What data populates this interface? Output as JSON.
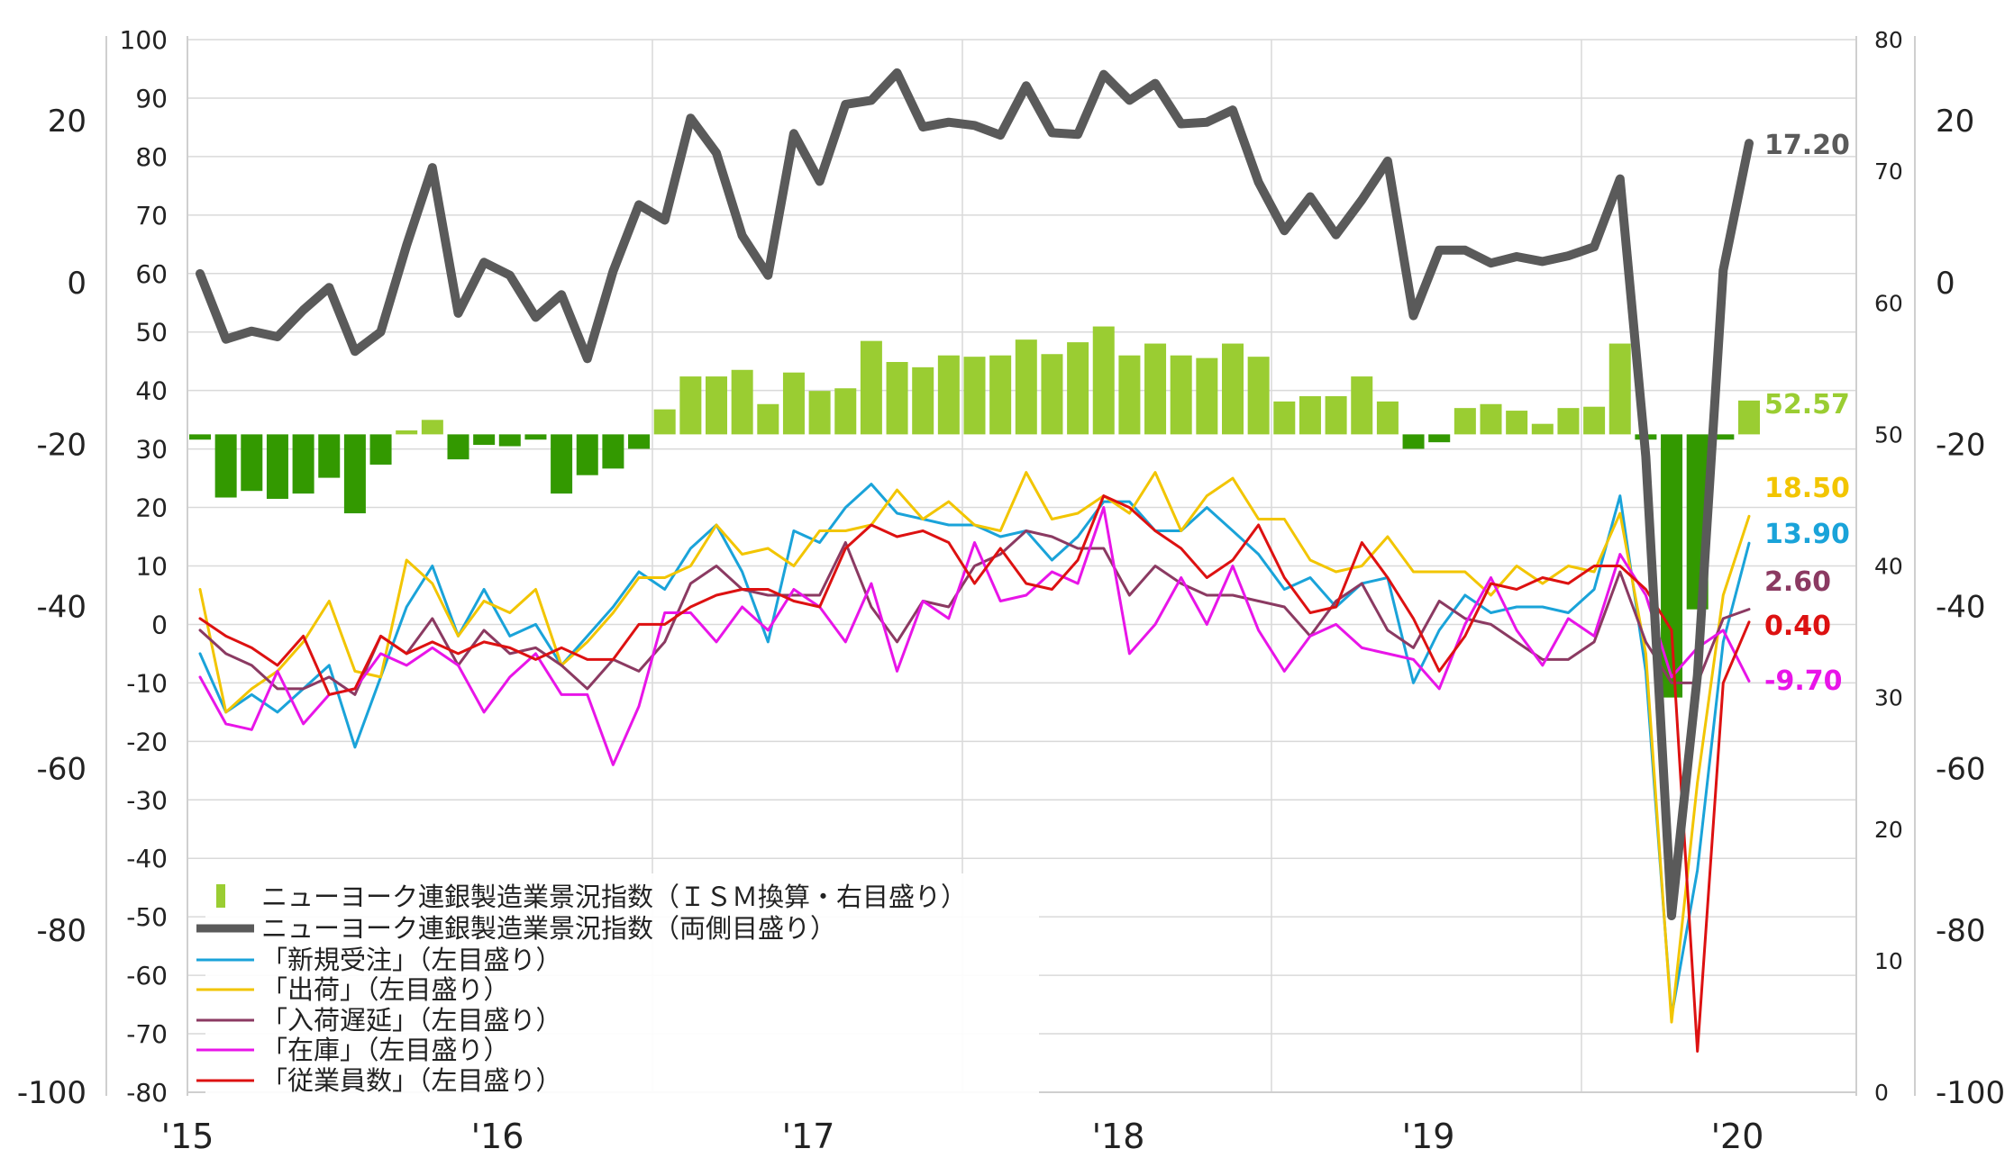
{
  "chart_data": {
    "type": "line",
    "x_labels": [
      "'15",
      "'16",
      "'17",
      "'18",
      "'19",
      "'20"
    ],
    "axes": {
      "outer_left": {
        "ticks": [
          20,
          0,
          -20,
          -40,
          -60,
          -80,
          -100
        ],
        "range": [
          -100,
          30
        ]
      },
      "inner_left": {
        "ticks": [
          100,
          90,
          80,
          70,
          60,
          50,
          40,
          30,
          20,
          10,
          0,
          -10,
          -20,
          -30,
          -40,
          -50,
          -60,
          -70,
          -80
        ],
        "range": [
          -80,
          100
        ]
      },
      "inner_right": {
        "ticks": [
          80,
          70,
          60,
          50,
          40,
          30,
          20,
          10,
          0
        ],
        "range": [
          0,
          80
        ]
      },
      "outer_right": {
        "ticks": [
          20,
          0,
          -20,
          -40,
          -60,
          -80,
          -100
        ],
        "range": [
          -100,
          30
        ]
      }
    },
    "grid": true,
    "legend_position": "lower-left",
    "legend": [
      "ニューヨーク連銀製造業景況指数（ＩＳＭ換算・右目盛り）",
      "ニューヨーク連銀製造業景況指数（両側目盛り）",
      "「新規受注」（左目盛り）",
      "「出荷」（左目盛り）",
      "「入荷遅延」（左目盛り）",
      "「在庫」（左目盛り）",
      "「従業員数」（左目盛り）"
    ],
    "bars": {
      "name": "ニューヨーク連銀製造業景況指数（ＩＳＭ換算・右目盛り）",
      "axis": "inner_right",
      "baseline": 50,
      "color_up": "#9acd32",
      "color_down": "#339900",
      "values": [
        49.6,
        45.2,
        45.7,
        45.1,
        45.5,
        46.7,
        44.0,
        47.7,
        50.3,
        51.1,
        48.1,
        49.2,
        49.1,
        49.6,
        45.5,
        46.9,
        47.4,
        48.9,
        51.9,
        54.4,
        54.4,
        54.9,
        52.3,
        54.7,
        53.3,
        53.5,
        57.1,
        55.5,
        55.1,
        56.0,
        55.9,
        56.0,
        57.2,
        56.1,
        57.0,
        58.2,
        56.0,
        56.9,
        56.0,
        55.8,
        56.9,
        55.9,
        52.5,
        52.9,
        52.9,
        54.4,
        52.5,
        48.9,
        49.4,
        52.0,
        52.3,
        51.8,
        50.8,
        52.0,
        52.1,
        56.9,
        49.6,
        30.0,
        36.7,
        49.6,
        52.57
      ]
    },
    "series": [
      {
        "name": "ニューヨーク連銀製造業景況指数（両側目盛り）",
        "axis": "outer_right",
        "color": "#5a5a5a",
        "width": 10,
        "label": "17.20",
        "values": [
          1.1,
          -7.0,
          -6.0,
          -6.7,
          -3.4,
          -0.6,
          -8.5,
          -6.1,
          4.6,
          14.2,
          -3.8,
          2.5,
          0.9,
          -4.3,
          -1.5,
          -9.4,
          1.4,
          9.6,
          7.7,
          20.3,
          16.0,
          5.8,
          0.9,
          18.4,
          12.5,
          22.0,
          22.5,
          25.9,
          19.2,
          19.8,
          19.4,
          18.2,
          24.3,
          18.5,
          18.3,
          25.7,
          22.5,
          24.6,
          19.6,
          19.8,
          21.3,
          12.4,
          6.4,
          10.6,
          5.9,
          10.2,
          15.0,
          -4.1,
          4.0,
          4.0,
          2.4,
          3.2,
          2.6,
          3.3,
          4.4,
          12.8,
          -21.5,
          -78.2,
          -48.5,
          1.5,
          17.2
        ]
      },
      {
        "name": "「新規受注」（左目盛り）",
        "axis": "inner_left",
        "color": "#1aa3d9",
        "width": 3,
        "label": "13.90",
        "values": [
          -5,
          -15,
          -12,
          -15,
          -11,
          -7,
          -21,
          -9,
          3,
          10,
          -2,
          6,
          -2,
          0,
          -7,
          -2,
          3,
          9,
          6,
          13,
          17,
          9,
          -3,
          16,
          14,
          20,
          24,
          19,
          18,
          17,
          17,
          15,
          16,
          11,
          15,
          21,
          21,
          16,
          16,
          20,
          16,
          12,
          6,
          8,
          3,
          7,
          8,
          -10,
          -1,
          5,
          2,
          3,
          3,
          2,
          6,
          22,
          -8,
          -67,
          -42,
          -3,
          13.9
        ]
      },
      {
        "name": "「出荷」（左目盛り）",
        "axis": "inner_left",
        "color": "#f2c500",
        "width": 3,
        "label": "18.50",
        "values": [
          6,
          -15,
          -11,
          -8,
          -3,
          4,
          -8,
          -9,
          11,
          7,
          -2,
          4,
          2,
          6,
          -7,
          -3,
          2,
          8,
          8,
          10,
          17,
          12,
          13,
          10,
          16,
          16,
          17,
          23,
          18,
          21,
          17,
          16,
          26,
          18,
          19,
          22,
          19,
          26,
          16,
          22,
          25,
          18,
          18,
          11,
          9,
          10,
          15,
          9,
          9,
          9,
          5,
          10,
          7,
          10,
          9,
          19,
          -5,
          -68,
          -27,
          5,
          18.5
        ]
      },
      {
        "name": "「入荷遅延」（左目盛り）",
        "axis": "inner_left",
        "color": "#8b3a62",
        "width": 3,
        "label": "2.60",
        "values": [
          -1,
          -5,
          -7,
          -11,
          -11,
          -9,
          -12,
          -2,
          -5,
          1,
          -7,
          -1,
          -5,
          -4,
          -7,
          -11,
          -6,
          -8,
          -3,
          7,
          10,
          6,
          5,
          5,
          5,
          14,
          3,
          -3,
          4,
          3,
          10,
          12,
          16,
          15,
          13,
          13,
          5,
          10,
          7,
          5,
          5,
          4,
          3,
          -2,
          4,
          7,
          -1,
          -4,
          4,
          1,
          0,
          -3,
          -6,
          -6,
          -3,
          9,
          -3,
          -10,
          -10,
          1,
          2.6
        ]
      },
      {
        "name": "「在庫」（左目盛り）",
        "axis": "inner_left",
        "color": "#e815e8",
        "width": 3,
        "label": "-9.70",
        "values": [
          -9,
          -17,
          -18,
          -8,
          -17,
          -12,
          -11,
          -5,
          -7,
          -4,
          -7,
          -15,
          -9,
          -5,
          -12,
          -12,
          -24,
          -14,
          2,
          2,
          -3,
          3,
          -1,
          6,
          3,
          -3,
          7,
          -8,
          4,
          1,
          14,
          4,
          5,
          9,
          7,
          20,
          -5,
          0,
          8,
          0,
          10,
          -1,
          -8,
          -2,
          0,
          -4,
          -5,
          -6,
          -11,
          0,
          8,
          -1,
          -7,
          1,
          -2,
          12,
          5,
          -9,
          -4,
          -1,
          -9.7
        ]
      },
      {
        "name": "「従業員数」（左目盛り）",
        "axis": "inner_left",
        "color": "#dd1111",
        "width": 3,
        "label": "0.40",
        "values": [
          1,
          -2,
          -4,
          -7,
          -2,
          -12,
          -11,
          -2,
          -5,
          -3,
          -5,
          -3,
          -4,
          -6,
          -4,
          -6,
          -6,
          0,
          0,
          3,
          5,
          6,
          6,
          4,
          3,
          13,
          17,
          15,
          16,
          14,
          7,
          13,
          7,
          6,
          11,
          22,
          20,
          16,
          13,
          8,
          11,
          17,
          8,
          2,
          3,
          14,
          8,
          1,
          -8,
          -2,
          7,
          6,
          8,
          7,
          10,
          10,
          6,
          -1,
          -73,
          -10,
          0.4
        ]
      }
    ]
  }
}
